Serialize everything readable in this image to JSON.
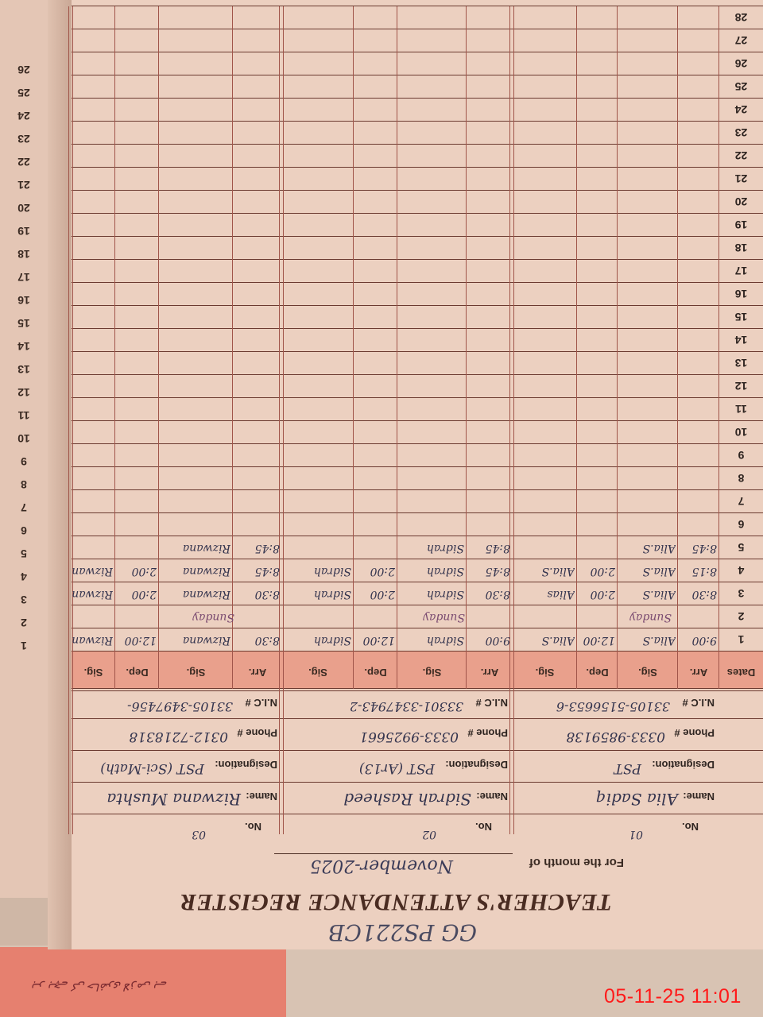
{
  "register": {
    "title": "TEACHER'S ATTENDANCE REGISTER",
    "code": "GG PS221CB",
    "month_label": "For the month of",
    "month_value": "November-2025",
    "labels": {
      "no": "No.",
      "name": "Name:",
      "designation": "Designation:",
      "phone": "Phone #",
      "nic": "N.I.C #",
      "dates": "Dates"
    },
    "column_headers": [
      "Arr.",
      "Sig.",
      "Dep.",
      "Sig."
    ],
    "teachers": [
      {
        "no": "01",
        "name": "Alia Sadiq",
        "designation": "PST",
        "phone": "0333-9859138",
        "nic": "33105-5156653-6"
      },
      {
        "no": "02",
        "name": "Sidrah Rasheed",
        "designation": "PST (Ar13)",
        "phone": "0333-9925661",
        "nic": "33301-3347943-2"
      },
      {
        "no": "03",
        "name": "Rizwana Mushta",
        "designation": "PST (Sci-Math)",
        "phone": "0312-7218318",
        "nic": "33105-3497456-"
      }
    ],
    "dates": [
      "1",
      "2",
      "3",
      "4",
      "5",
      "6",
      "7",
      "8",
      "9",
      "10",
      "11",
      "12",
      "13",
      "14",
      "15",
      "16",
      "17",
      "18",
      "19",
      "20",
      "21",
      "22",
      "23",
      "24",
      "25",
      "26",
      "27",
      "28"
    ],
    "entries": [
      {
        "date": "1",
        "cells": [
          [
            "9:00",
            "Alia.S",
            "12:00",
            "Alia.S"
          ],
          [
            "9:00",
            "Sidrah",
            "12:00",
            "Sidrah"
          ],
          [
            "8:30",
            "Rizwana",
            "12:00",
            "Rizwana"
          ]
        ]
      },
      {
        "date": "2",
        "sunday": [
          "Sunday",
          "Sunday",
          "Sunday"
        ]
      },
      {
        "date": "3",
        "cells": [
          [
            "8:30",
            "Alia.S",
            "2:00",
            "Alias"
          ],
          [
            "8:30",
            "Sidrah",
            "2:00",
            "Sidrah"
          ],
          [
            "8:30",
            "Rizwana",
            "2:00",
            "Rizwana"
          ]
        ]
      },
      {
        "date": "4",
        "cells": [
          [
            "8:15",
            "Alia.S",
            "2:00",
            "Alia.S"
          ],
          [
            "8:45",
            "Sidrah",
            "2:00",
            "Sidrah"
          ],
          [
            "8:45",
            "Rizwana",
            "2:00",
            "Rizwana"
          ]
        ]
      },
      {
        "date": "5",
        "cells": [
          [
            "8:45",
            "Alia.S",
            "",
            ""
          ],
          [
            "8:45",
            "Sidrah",
            "",
            ""
          ],
          [
            "8:45",
            "Rizwana",
            "",
            ""
          ]
        ]
      }
    ],
    "other_page_dates": [
      "1",
      "2",
      "3",
      "4",
      "5",
      "6",
      "7",
      "8",
      "9",
      "10",
      "11",
      "12",
      "13",
      "14",
      "15",
      "16",
      "17",
      "18",
      "19",
      "20",
      "21",
      "22",
      "23",
      "24",
      "25",
      "26"
    ]
  },
  "note_text": "ہر بچے کی حاضری لازمی ہے",
  "camera_timestamp": "05-11-25  11:01",
  "colors": {
    "paper": "#ecd0c0",
    "header_band": "#e9a08c",
    "ink": "#34344e",
    "timestamp": "#ff1a1a"
  }
}
